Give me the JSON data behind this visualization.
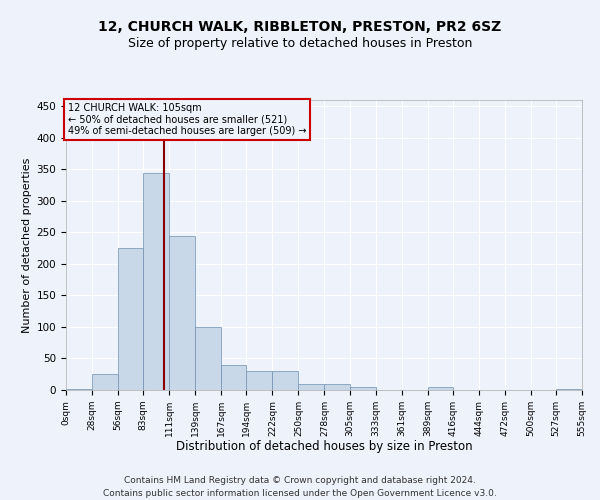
{
  "title1": "12, CHURCH WALK, RIBBLETON, PRESTON, PR2 6SZ",
  "title2": "Size of property relative to detached houses in Preston",
  "xlabel": "Distribution of detached houses by size in Preston",
  "ylabel": "Number of detached properties",
  "footnote": "Contains HM Land Registry data © Crown copyright and database right 2024.\nContains public sector information licensed under the Open Government Licence v3.0.",
  "bin_edges": [
    0,
    28,
    56,
    83,
    111,
    139,
    167,
    194,
    222,
    250,
    278,
    305,
    333,
    361,
    389,
    416,
    444,
    472,
    500,
    527,
    555
  ],
  "bar_heights": [
    2,
    25,
    225,
    345,
    245,
    100,
    40,
    30,
    30,
    10,
    10,
    5,
    0,
    0,
    5,
    0,
    0,
    0,
    0,
    2
  ],
  "bar_color": "#c8d8e8",
  "bar_edge_color": "#7090b0",
  "property_size": 105,
  "property_label": "12 CHURCH WALK: 105sqm",
  "annotation_line1": "← 50% of detached houses are smaller (521)",
  "annotation_line2": "49% of semi-detached houses are larger (509) →",
  "vline_color": "#8b0000",
  "box_edge_color": "#cc0000",
  "ylim": [
    0,
    460
  ],
  "yticks": [
    0,
    50,
    100,
    150,
    200,
    250,
    300,
    350,
    400,
    450
  ],
  "tick_labels": [
    "0sqm",
    "28sqm",
    "56sqm",
    "83sqm",
    "111sqm",
    "139sqm",
    "167sqm",
    "194sqm",
    "222sqm",
    "250sqm",
    "278sqm",
    "305sqm",
    "333sqm",
    "361sqm",
    "389sqm",
    "416sqm",
    "444sqm",
    "472sqm",
    "500sqm",
    "527sqm",
    "555sqm"
  ],
  "bg_color": "#eef2fa",
  "grid_color": "#ffffff",
  "title1_fontsize": 10,
  "title2_fontsize": 9,
  "xlabel_fontsize": 8.5,
  "ylabel_fontsize": 8,
  "footnote_fontsize": 6.5,
  "tick_fontsize": 6.5,
  "ytick_fontsize": 7.5
}
